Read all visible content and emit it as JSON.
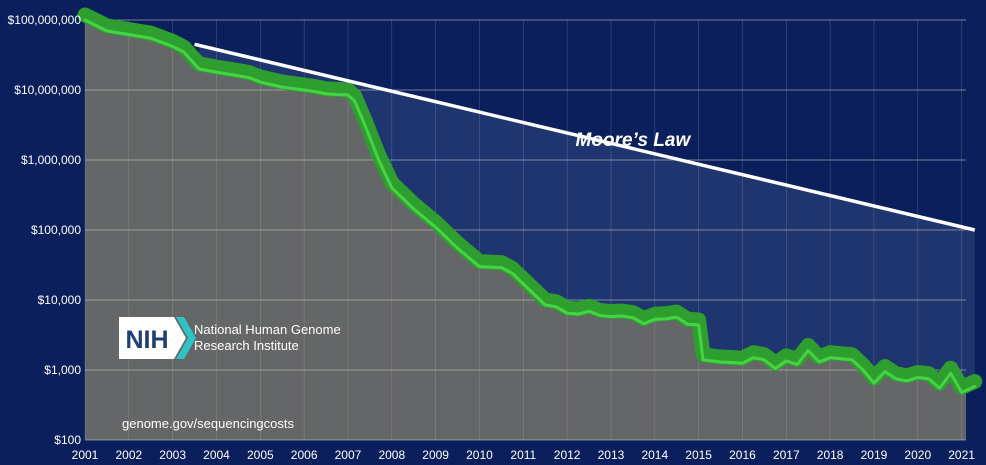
{
  "chart_data": {
    "type": "line",
    "title": "",
    "xlabel": "",
    "ylabel": "",
    "yscale": "log",
    "ylim": [
      100,
      100000000
    ],
    "xlim": [
      2001,
      2021.3
    ],
    "y_ticks": [
      {
        "value": 100,
        "label": "$100"
      },
      {
        "value": 1000,
        "label": "$1,000"
      },
      {
        "value": 10000,
        "label": "$10,000"
      },
      {
        "value": 100000,
        "label": "$100,000"
      },
      {
        "value": 1000000,
        "label": "$1,000,000"
      },
      {
        "value": 10000000,
        "label": "$10,000,000"
      },
      {
        "value": 100000000,
        "label": "$100,000,000"
      }
    ],
    "x_ticks": [
      "2001",
      "2002",
      "2003",
      "2004",
      "2005",
      "2006",
      "2007",
      "2008",
      "2009",
      "2010",
      "2011",
      "2012",
      "2013",
      "2014",
      "2015",
      "2016",
      "2017",
      "2018",
      "2019",
      "2020",
      "2021"
    ],
    "grid": true,
    "series": [
      {
        "role": "cost",
        "color": "#2e9e2e",
        "points": [
          [
            2001.0,
            100000000
          ],
          [
            2001.5,
            70000000
          ],
          [
            2002.0,
            62000000
          ],
          [
            2002.5,
            55000000
          ],
          [
            2003.0,
            42000000
          ],
          [
            2003.25,
            35000000
          ],
          [
            2003.6,
            20000000
          ],
          [
            2004.0,
            18000000
          ],
          [
            2004.5,
            16000000
          ],
          [
            2004.75,
            15000000
          ],
          [
            2005.0,
            13000000
          ],
          [
            2005.5,
            11000000
          ],
          [
            2006.0,
            10000000
          ],
          [
            2006.25,
            9500000
          ],
          [
            2006.5,
            8800000
          ],
          [
            2007.0,
            8500000
          ],
          [
            2007.15,
            7000000
          ],
          [
            2007.4,
            3000000
          ],
          [
            2007.7,
            1000000
          ],
          [
            2008.0,
            400000
          ],
          [
            2008.5,
            200000
          ],
          [
            2009.0,
            110000
          ],
          [
            2009.5,
            55000
          ],
          [
            2010.0,
            30000
          ],
          [
            2010.5,
            29000
          ],
          [
            2010.75,
            24000
          ],
          [
            2011.0,
            17000
          ],
          [
            2011.25,
            12000
          ],
          [
            2011.5,
            8500
          ],
          [
            2011.75,
            8000
          ],
          [
            2012.0,
            6500
          ],
          [
            2012.25,
            6300
          ],
          [
            2012.5,
            6900
          ],
          [
            2012.75,
            6000
          ],
          [
            2013.0,
            5800
          ],
          [
            2013.25,
            5900
          ],
          [
            2013.5,
            5600
          ],
          [
            2013.75,
            4600
          ],
          [
            2014.0,
            5300
          ],
          [
            2014.25,
            5400
          ],
          [
            2014.5,
            5700
          ],
          [
            2014.75,
            4500
          ],
          [
            2015.0,
            4400
          ],
          [
            2015.1,
            1400
          ],
          [
            2015.5,
            1300
          ],
          [
            2015.75,
            1280
          ],
          [
            2016.0,
            1250
          ],
          [
            2016.25,
            1500
          ],
          [
            2016.5,
            1400
          ],
          [
            2016.75,
            1050
          ],
          [
            2017.0,
            1350
          ],
          [
            2017.25,
            1200
          ],
          [
            2017.5,
            1900
          ],
          [
            2017.75,
            1300
          ],
          [
            2018.0,
            1500
          ],
          [
            2018.25,
            1450
          ],
          [
            2018.5,
            1400
          ],
          [
            2018.75,
            1000
          ],
          [
            2019.0,
            650
          ],
          [
            2019.25,
            950
          ],
          [
            2019.5,
            750
          ],
          [
            2019.75,
            700
          ],
          [
            2020.0,
            780
          ],
          [
            2020.25,
            750
          ],
          [
            2020.5,
            550
          ],
          [
            2020.75,
            900
          ],
          [
            2021.0,
            480
          ],
          [
            2021.3,
            580
          ]
        ]
      },
      {
        "role": "moores-law",
        "color": "#ffffff",
        "points": [
          [
            2003.5,
            45000000
          ],
          [
            2021.3,
            100000
          ]
        ]
      }
    ],
    "annotations": [
      {
        "text": "Moore’s Law",
        "x": 2013.5,
        "y": 2000000
      }
    ]
  },
  "logo": {
    "letters": "NIH",
    "line1": "National Human Genome",
    "line2": "Research Institute",
    "color": "#ffffff",
    "accent": "#2ec4c4"
  },
  "source": "genome.gov/sequencingcosts",
  "colors": {
    "background": "#0a1f5c",
    "plot_area": "#656667",
    "gap_fill": "#1f3570",
    "grid": "#c8c8c8",
    "cost_line": "#2e9e2e",
    "cost_line_highlight": "#46d446",
    "moore_line": "#ffffff"
  }
}
